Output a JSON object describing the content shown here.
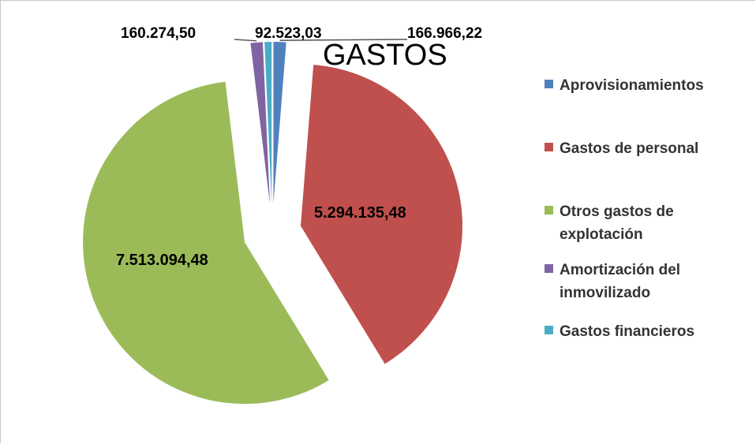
{
  "chart_data": {
    "type": "pie",
    "title": "GASTOS",
    "legend_position": "right",
    "slices": [
      {
        "name": "Aprovisionamientos",
        "value": 166966.22,
        "label": "166.966,22",
        "color": "#4f81bd"
      },
      {
        "name": "Gastos de personal",
        "value": 5294135.48,
        "label": "5.294.135,48",
        "color": "#c0504d"
      },
      {
        "name": "Otros gastos de explotación",
        "value": 7513094.48,
        "label": "7.513.094,48",
        "color": "#9bbb59"
      },
      {
        "name": "Amortización del inmovilizado",
        "value": 160274.5,
        "label": "160.274,50",
        "color": "#8064a2"
      },
      {
        "name": "Gastos financieros",
        "value": 92523.03,
        "label": "92.523,03",
        "color": "#4bacc6"
      }
    ]
  }
}
